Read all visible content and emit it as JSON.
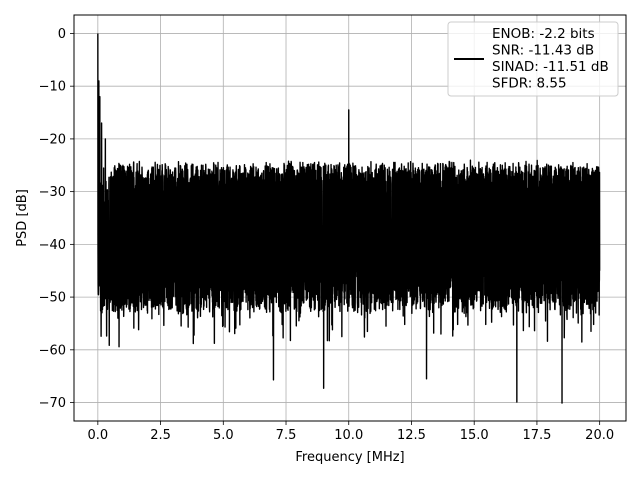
{
  "chart_data": {
    "type": "line",
    "xlabel": "Frequency [MHz]",
    "ylabel": "PSD [dB]",
    "xlim": [
      -0.95,
      21.05
    ],
    "ylim": [
      -73.5,
      3.5
    ],
    "x_ticks": [
      0.0,
      2.5,
      5.0,
      7.5,
      10.0,
      12.5,
      15.0,
      17.5,
      20.0
    ],
    "x_tick_labels": [
      "0.0",
      "2.5",
      "5.0",
      "7.5",
      "10.0",
      "12.5",
      "15.0",
      "17.5",
      "20.0"
    ],
    "y_ticks": [
      0,
      -10,
      -20,
      -30,
      -40,
      -50,
      -60,
      -70
    ],
    "y_tick_labels": [
      "0",
      "−10",
      "−20",
      "−30",
      "−40",
      "−50",
      "−60",
      "−70"
    ],
    "grid": true,
    "legend_position": "top-right",
    "legend_lines": [
      "ENOB: -2.2 bits",
      "SNR: -11.43 dB",
      "SINAD: -11.51 dB",
      "SFDR: 8.55"
    ],
    "series": [
      {
        "color": "#000000",
        "key_points": [
          {
            "x": 0.0,
            "y": 0.0
          },
          {
            "x": 0.04,
            "y": -9.0
          },
          {
            "x": 0.08,
            "y": -12.0
          },
          {
            "x": 0.15,
            "y": -17.0
          },
          {
            "x": 0.3,
            "y": -20.0
          },
          {
            "x": 0.8,
            "y": -54.0
          },
          {
            "x": 7.0,
            "y": -65.7
          },
          {
            "x": 9.0,
            "y": -67.3
          },
          {
            "x": 10.0,
            "y": -14.5
          },
          {
            "x": 13.1,
            "y": -65.5
          },
          {
            "x": 16.7,
            "y": -69.9
          },
          {
            "x": 18.5,
            "y": -70.1
          },
          {
            "x": 20.0,
            "y": -45.0
          }
        ],
        "noise_floor_upper_db": -24,
        "noise_floor_lower_db": -50
      }
    ]
  }
}
